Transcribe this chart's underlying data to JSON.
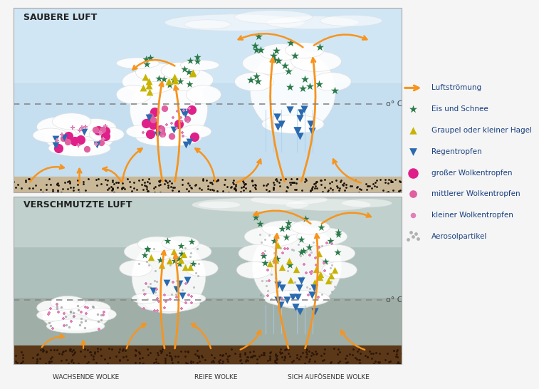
{
  "title_top": "SAUBERE LUFT",
  "title_bottom": "VERSCHMUTZTE LUFT",
  "label_wachsend": "WACHSENDE WOLKE",
  "label_reif": "REIFE WOLKE",
  "label_aufloesend": "SICH AUFÖSENDE WOLKE",
  "zero_celsius": "o° C",
  "bg_top_sky": "#c5dff0",
  "bg_top_sky2": "#deeef8",
  "bg_bottom_top": "#b8c8c8",
  "bg_bottom_low": "#9aaa9a",
  "ground_color_top": "#2a1f14",
  "ground_color_bottom": "#3d2510",
  "arrow_color": "#f7941d",
  "ice_color": "#2a7a4a",
  "hail_color": "#c8b400",
  "rain_color": "#2a6ab0",
  "drop_large_color": "#e0208a",
  "drop_medium_color": "#e060a0",
  "drop_small_color": "#e080b8",
  "aerosol_color": "#999999",
  "cloud_color": "#ffffff",
  "cloud_alpha": 0.92,
  "legend_text_color": "#1a4080",
  "legend_labels": [
    "Luftströmung",
    "Eis und Schnee",
    "Graupel oder kleiner Hagel",
    "Regentropfen",
    "großer Wolkentropfen",
    "mittlerer Wolkentropfen",
    "kleiner Wolkentropfen",
    "Aerosolpartikel"
  ]
}
